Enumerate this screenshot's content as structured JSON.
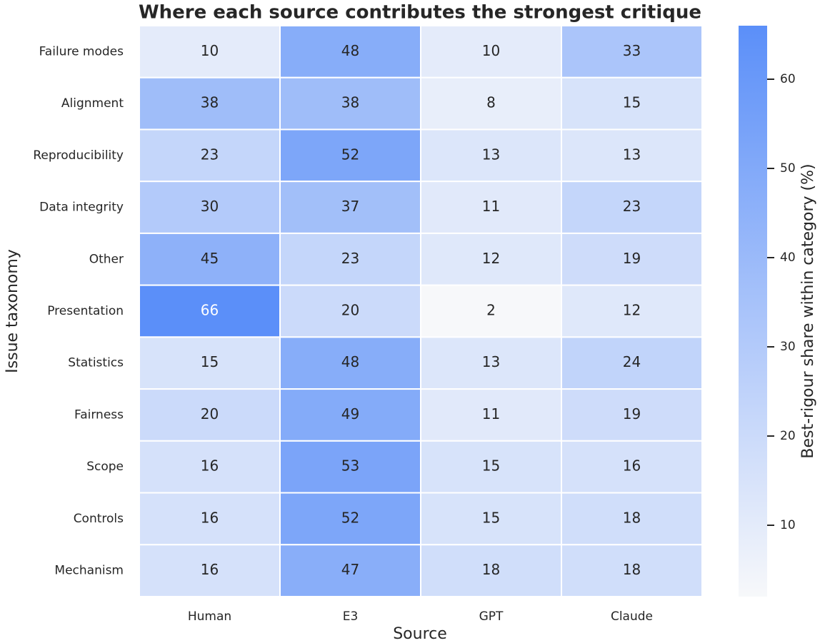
{
  "chart_data": {
    "type": "heatmap",
    "title": "Where each source contributes the strongest critique",
    "xlabel": "Source",
    "ylabel": "Issue taxonomy",
    "colorbar_label": "Best-rigour share within category (%)",
    "x": [
      "Human",
      "E3",
      "GPT",
      "Claude"
    ],
    "y": [
      "Failure modes",
      "Alignment",
      "Reproducibility",
      "Data integrity",
      "Other",
      "Presentation",
      "Statistics",
      "Fairness",
      "Scope",
      "Controls",
      "Mechanism"
    ],
    "values": [
      [
        10,
        48,
        10,
        33
      ],
      [
        38,
        38,
        8,
        15
      ],
      [
        23,
        52,
        13,
        13
      ],
      [
        30,
        37,
        11,
        23
      ],
      [
        45,
        23,
        12,
        19
      ],
      [
        66,
        20,
        2,
        12
      ],
      [
        15,
        48,
        13,
        24
      ],
      [
        20,
        49,
        11,
        19
      ],
      [
        16,
        53,
        15,
        16
      ],
      [
        16,
        52,
        15,
        18
      ],
      [
        16,
        47,
        18,
        18
      ]
    ],
    "zlim": [
      2,
      66
    ],
    "zticks": [
      10,
      20,
      30,
      40,
      50,
      60
    ],
    "colors": [
      "#f7f8fa",
      "#5b8ff9"
    ]
  }
}
